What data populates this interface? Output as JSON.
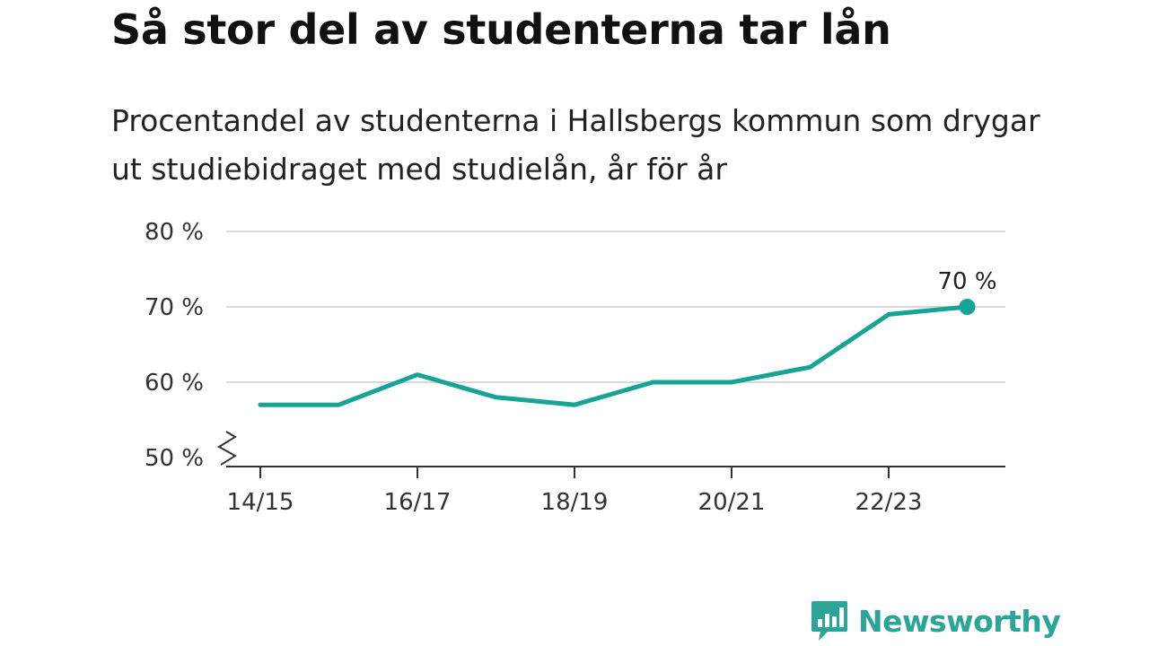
{
  "colors": {
    "line": "#16a595",
    "grid": "#d9d9d9",
    "axis": "#333333",
    "brand": "#2aa597"
  },
  "brand": {
    "name": "Newsworthy",
    "icon": "bar-chart-speech-bubble-icon"
  },
  "chart_data": {
    "type": "line",
    "title": "Så stor del av studenterna tar lån",
    "subtitle": "Procentandel av studenterna i Hallsbergs kommun som drygar ut studiebidraget med studielån, år för år",
    "x": [
      "14/15",
      "15/16",
      "16/17",
      "17/18",
      "18/19",
      "19/20",
      "20/21",
      "21/22",
      "22/23",
      "23/24"
    ],
    "x_tick_labels": [
      "14/15",
      "16/17",
      "18/19",
      "20/21",
      "22/23"
    ],
    "series": [
      {
        "values": [
          57,
          57,
          61,
          58,
          57,
          60,
          60,
          62,
          69,
          70
        ]
      }
    ],
    "y_ticks": [
      50,
      60,
      70,
      80
    ],
    "y_tick_labels": [
      "50 %",
      "60 %",
      "70 %",
      "80 %"
    ],
    "ylim": [
      50,
      80
    ],
    "axis_break": true,
    "grid": true,
    "end_label": "70 %"
  }
}
